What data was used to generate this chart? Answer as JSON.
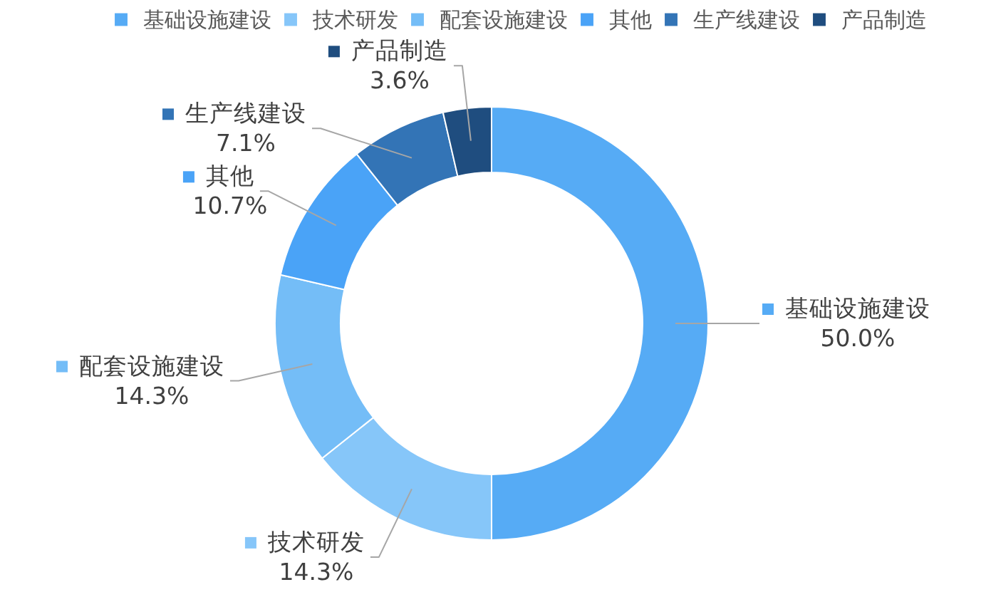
{
  "chart_data": {
    "type": "donut",
    "categories": [
      "基础设施建设",
      "技术研发",
      "配套设施建设",
      "其他",
      "生产线建设",
      "产品制造"
    ],
    "values": [
      50.0,
      14.3,
      14.3,
      10.7,
      7.1,
      3.6
    ],
    "colors": [
      "#56abf5",
      "#86c6f9",
      "#74bdf7",
      "#4aa3f7",
      "#3374b6",
      "#1f4d7f"
    ],
    "value_labels": [
      "50.0%",
      "14.3%",
      "14.3%",
      "10.7%",
      "7.1%",
      "3.6%"
    ],
    "legend": "top"
  }
}
